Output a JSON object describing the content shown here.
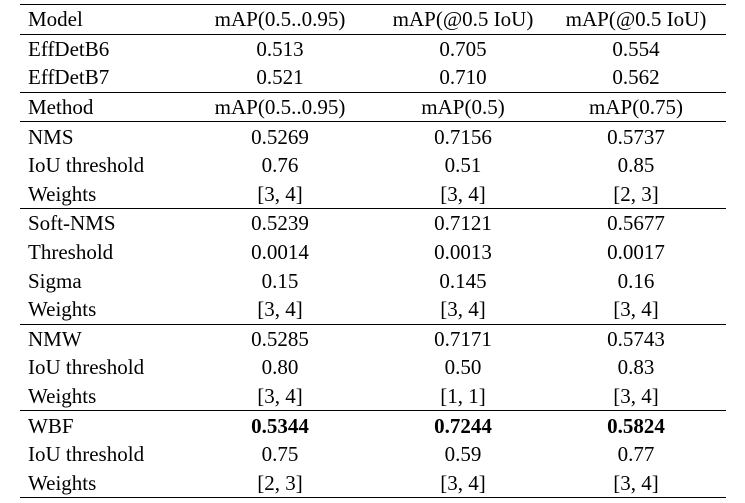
{
  "table": {
    "rows": [
      {
        "cells": [
          "Model",
          "mAP(0.5..0.95)",
          "mAP(@0.5 IoU)",
          "mAP(@0.5 IoU)"
        ],
        "bold": false,
        "top": true,
        "bottom": true
      },
      {
        "cells": [
          "EffDetB6",
          "0.513",
          "0.705",
          "0.554"
        ],
        "bold": false,
        "top": false,
        "bottom": false
      },
      {
        "cells": [
          "EffDetB7",
          "0.521",
          "0.710",
          "0.562"
        ],
        "bold": false,
        "top": false,
        "bottom": true
      },
      {
        "cells": [
          "Method",
          "mAP(0.5..0.95)",
          "mAP(0.5)",
          "mAP(0.75)"
        ],
        "bold": false,
        "top": false,
        "bottom": true
      },
      {
        "cells": [
          "NMS",
          "0.5269",
          "0.7156",
          "0.5737"
        ],
        "bold": false,
        "top": false,
        "bottom": false
      },
      {
        "cells": [
          "IoU threshold",
          "0.76",
          "0.51",
          "0.85"
        ],
        "bold": false,
        "top": false,
        "bottom": false
      },
      {
        "cells": [
          "Weights",
          "[3, 4]",
          "[3, 4]",
          "[2, 3]"
        ],
        "bold": false,
        "top": false,
        "bottom": true
      },
      {
        "cells": [
          "Soft-NMS",
          "0.5239",
          "0.7121",
          "0.5677"
        ],
        "bold": false,
        "top": false,
        "bottom": false
      },
      {
        "cells": [
          "Threshold",
          "0.0014",
          "0.0013",
          "0.0017"
        ],
        "bold": false,
        "top": false,
        "bottom": false
      },
      {
        "cells": [
          "Sigma",
          "0.15",
          "0.145",
          "0.16"
        ],
        "bold": false,
        "top": false,
        "bottom": false
      },
      {
        "cells": [
          "Weights",
          "[3, 4]",
          "[3, 4]",
          "[3, 4]"
        ],
        "bold": false,
        "top": false,
        "bottom": true
      },
      {
        "cells": [
          "NMW",
          "0.5285",
          "0.7171",
          "0.5743"
        ],
        "bold": false,
        "top": false,
        "bottom": false
      },
      {
        "cells": [
          "IoU threshold",
          "0.80",
          "0.50",
          "0.83"
        ],
        "bold": false,
        "top": false,
        "bottom": false
      },
      {
        "cells": [
          "Weights",
          "[3, 4]",
          "[1, 1]",
          "[3, 4]"
        ],
        "bold": false,
        "top": false,
        "bottom": true
      },
      {
        "cells": [
          "WBF",
          "0.5344",
          "0.7244",
          "0.5824"
        ],
        "bold": true,
        "top": false,
        "bottom": false
      },
      {
        "cells": [
          "IoU threshold",
          "0.75",
          "0.59",
          "0.77"
        ],
        "bold": false,
        "top": false,
        "bottom": false
      },
      {
        "cells": [
          "Weights",
          "[2, 3]",
          "[3, 4]",
          "[3, 4]"
        ],
        "bold": false,
        "top": false,
        "bottom": true
      }
    ]
  }
}
